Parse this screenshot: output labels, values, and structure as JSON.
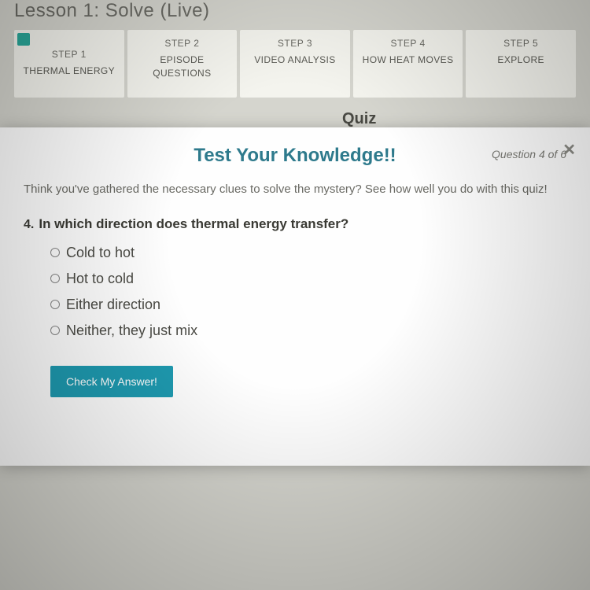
{
  "lesson": {
    "title": "Lesson 1: Solve (Live)"
  },
  "steps": [
    {
      "label": "STEP 1",
      "name": "THERMAL ENERGY",
      "active": true
    },
    {
      "label": "STEP 2",
      "name": "EPISODE QUESTIONS",
      "active": false
    },
    {
      "label": "STEP 3",
      "name": "VIDEO ANALYSIS",
      "active": false
    },
    {
      "label": "STEP 4",
      "name": "HOW HEAT MOVES",
      "active": false
    },
    {
      "label": "STEP 5",
      "name": "EXPLORE",
      "active": false
    }
  ],
  "quiz_section_label": "Quiz",
  "modal": {
    "title": "Test Your Knowledge!!",
    "counter": "Question 4 of 6",
    "close_glyph": "✕",
    "intro": "Think you've gathered the necessary clues to solve the mystery? See how well you do with this quiz!",
    "question_number": "4.",
    "question_text": "In which direction does thermal energy transfer?",
    "options": [
      "Cold to hot",
      "Hot to cold",
      "Either direction",
      "Neither, they just mix"
    ],
    "check_button": "Check My Answer!"
  },
  "colors": {
    "accent_teal": "#2aa89a",
    "title_teal": "#2e7a8c",
    "button_teal": "#1e9ab0",
    "page_bg": "#e8e8e0",
    "step_bg": "#f4f4ee",
    "text_muted": "#6a6a64",
    "text_dark": "#3a3a34"
  },
  "typography": {
    "lesson_title_size": 24,
    "modal_title_size": 24,
    "question_size": 17,
    "option_size": 18,
    "intro_size": 15
  }
}
